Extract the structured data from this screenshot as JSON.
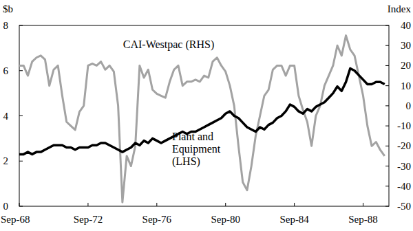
{
  "chart_data": {
    "type": "line",
    "y_label": "$b",
    "y2_label": "Index",
    "categories": [
      "Sep-68",
      null,
      null,
      null,
      null,
      null,
      null,
      null,
      null,
      null,
      null,
      null,
      null,
      null,
      null,
      null,
      "Sep-72",
      null,
      null,
      null,
      null,
      null,
      null,
      null,
      null,
      null,
      null,
      null,
      null,
      null,
      null,
      null,
      "Sep-76",
      null,
      null,
      null,
      null,
      null,
      null,
      null,
      null,
      null,
      null,
      null,
      null,
      null,
      null,
      null,
      "Sep-80",
      null,
      null,
      null,
      null,
      null,
      null,
      null,
      null,
      null,
      null,
      null,
      null,
      null,
      null,
      null,
      "Sep-84",
      null,
      null,
      null,
      null,
      null,
      null,
      null,
      null,
      null,
      null,
      null,
      null,
      null,
      null,
      null,
      "Sep-88",
      null,
      null,
      null,
      null,
      null
    ],
    "ylim": [
      0,
      8
    ],
    "yticks": [
      0,
      2,
      4,
      6,
      8
    ],
    "y2lim": [
      -50,
      40
    ],
    "y2ticks": [
      -50,
      -40,
      -30,
      -20,
      -10,
      0,
      10,
      20,
      30,
      40
    ],
    "series": [
      {
        "name": "CAI-Westpac (RHS)",
        "color": "#a3a3a3",
        "axis": "y2",
        "values": [
          20,
          20,
          15,
          22,
          24,
          25,
          23,
          10,
          18,
          20,
          5,
          -8,
          -10,
          -12,
          -3,
          0,
          20,
          21,
          20,
          22,
          18,
          20,
          17,
          0,
          -48,
          -25,
          -30,
          -20,
          20,
          14,
          18,
          8,
          6,
          5,
          4,
          12,
          18,
          20,
          10,
          12,
          12,
          13,
          12,
          15,
          14,
          22,
          24,
          20,
          17,
          10,
          0,
          -20,
          -38,
          -42,
          -30,
          -15,
          -5,
          5,
          8,
          18,
          20,
          20,
          15,
          20,
          20,
          5,
          -2,
          -8,
          -20,
          -5,
          0,
          10,
          15,
          20,
          30,
          25,
          35,
          28,
          25,
          15,
          5,
          -10,
          -20,
          -18,
          -22,
          -25
        ]
      },
      {
        "name": "Plant and Equipment (LHS)",
        "color": "#000000",
        "axis": "y",
        "values": [
          2.3,
          2.3,
          2.4,
          2.3,
          2.4,
          2.4,
          2.5,
          2.6,
          2.7,
          2.7,
          2.7,
          2.6,
          2.6,
          2.5,
          2.6,
          2.6,
          2.6,
          2.7,
          2.7,
          2.8,
          2.8,
          2.7,
          2.6,
          2.5,
          2.4,
          2.5,
          2.6,
          2.8,
          2.7,
          2.9,
          2.8,
          3.0,
          2.9,
          2.8,
          2.9,
          3.0,
          3.1,
          3.2,
          3.3,
          3.2,
          3.3,
          3.3,
          3.4,
          3.5,
          3.6,
          3.7,
          3.8,
          3.9,
          4.1,
          4.2,
          4.0,
          3.9,
          3.7,
          3.5,
          3.4,
          3.3,
          3.5,
          3.4,
          3.6,
          3.7,
          3.9,
          4.0,
          4.2,
          4.5,
          4.4,
          4.2,
          4.1,
          4.3,
          4.2,
          4.4,
          4.5,
          4.6,
          4.8,
          5.0,
          5.3,
          5.1,
          5.5,
          6.1,
          6.0,
          5.8,
          5.6,
          5.4,
          5.4,
          5.5,
          5.5,
          5.4
        ]
      }
    ]
  }
}
